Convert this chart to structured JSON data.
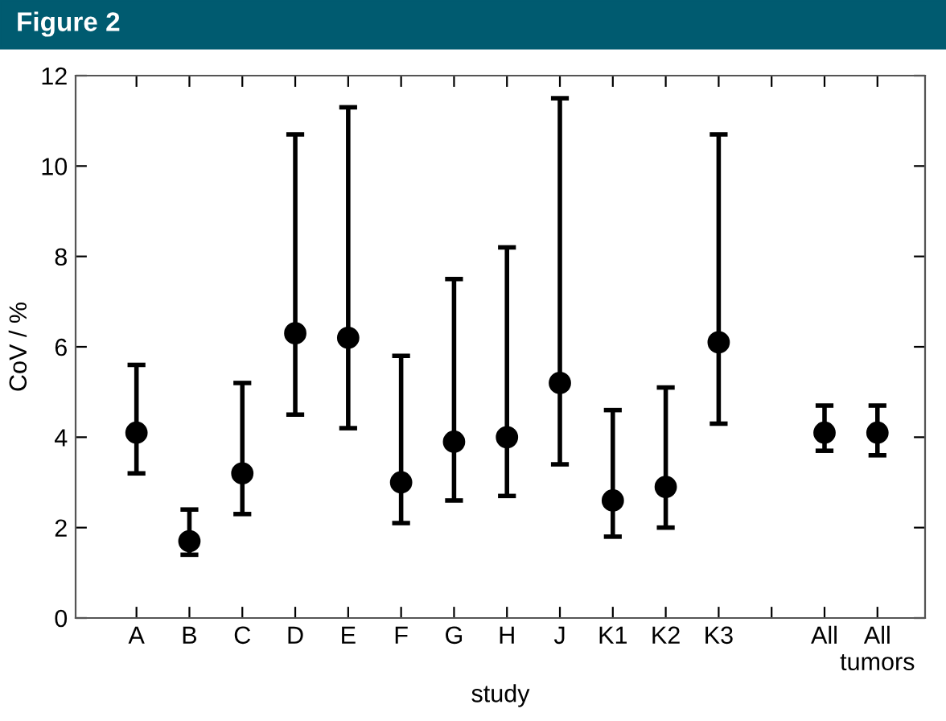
{
  "chart_data": {
    "type": "scatter",
    "title": "Figure 2",
    "xlabel": "study",
    "ylabel": "CoV / %",
    "categories": [
      "A",
      "B",
      "C",
      "D",
      "E",
      "F",
      "G",
      "H",
      "J",
      "K1",
      "K2",
      "K3",
      null,
      "All",
      "All\ntumors"
    ],
    "series": [
      {
        "color": "#000000",
        "marker": "circle",
        "values": [
          4.1,
          1.7,
          3.2,
          6.3,
          6.2,
          3.0,
          3.9,
          4.0,
          5.2,
          2.6,
          2.9,
          6.1,
          null,
          4.1,
          4.1
        ],
        "errors": [
          [
            3.2,
            5.6
          ],
          [
            1.4,
            2.4
          ],
          [
            2.3,
            5.2
          ],
          [
            4.5,
            10.7
          ],
          [
            4.2,
            11.3
          ],
          [
            2.1,
            5.8
          ],
          [
            2.6,
            7.5
          ],
          [
            2.7,
            8.2
          ],
          [
            3.4,
            11.5
          ],
          [
            1.8,
            4.6
          ],
          [
            2.0,
            5.1
          ],
          [
            4.3,
            10.7
          ],
          null,
          [
            3.7,
            4.7
          ],
          [
            3.6,
            4.7
          ]
        ]
      }
    ],
    "ylim": [
      0,
      12
    ],
    "yticks": [
      0,
      2,
      4,
      6,
      8,
      10,
      12
    ],
    "grid": false,
    "legend": false
  }
}
